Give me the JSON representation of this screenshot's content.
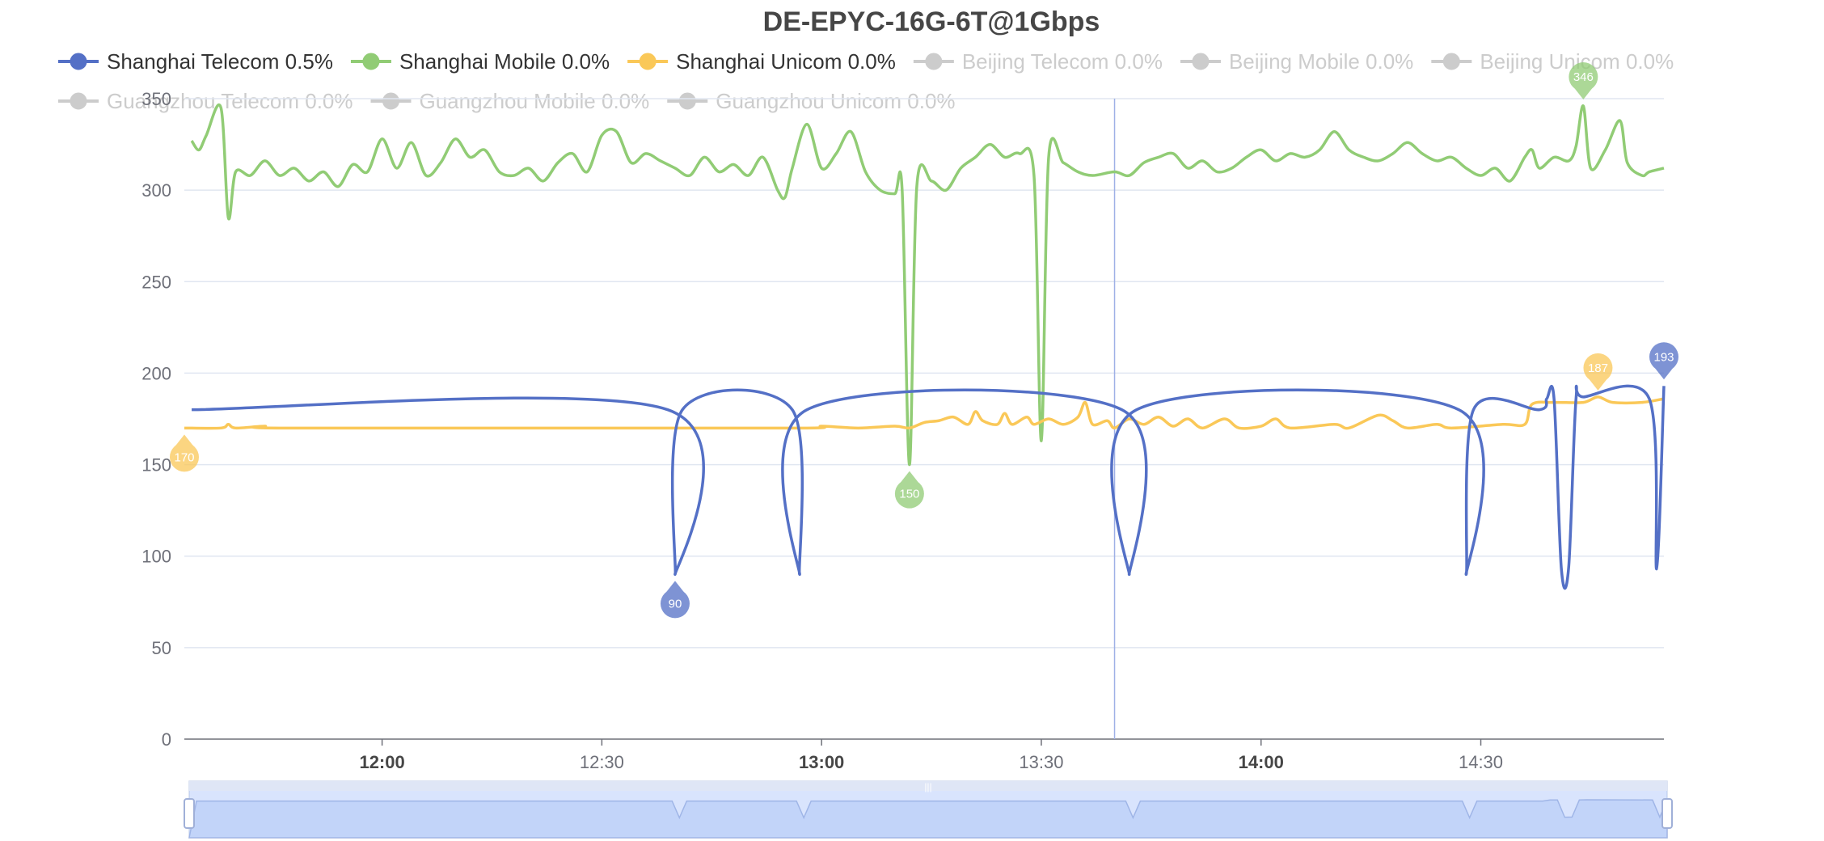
{
  "chart_data": {
    "type": "line",
    "title": "DE-EPYC-16G-6T@1Gbps",
    "ylim": [
      0,
      350
    ],
    "y_ticks": [
      "0",
      "50",
      "100",
      "150",
      "200",
      "250",
      "300",
      "350"
    ],
    "x_range_minutes": [
      "11:33",
      "14:55"
    ],
    "x_ticks": [
      {
        "label": "12:00",
        "bold": true
      },
      {
        "label": "12:30",
        "bold": false
      },
      {
        "label": "13:00",
        "bold": true
      },
      {
        "label": "13:30",
        "bold": false
      },
      {
        "label": "14:00",
        "bold": true
      },
      {
        "label": "14:30",
        "bold": false
      }
    ],
    "grid": true,
    "legend_position": "top",
    "crosshair_x": "13:40",
    "series": [
      {
        "name": "Shanghai Telecom 0.5%",
        "color": "#5470c6",
        "active": true,
        "baseline": 180,
        "points": [
          [
            "11:34",
            180
          ],
          [
            "12:39",
            180
          ],
          [
            "12:40",
            90
          ],
          [
            "12:41",
            180
          ],
          [
            "12:56",
            180
          ],
          [
            "12:57",
            90
          ],
          [
            "12:58",
            180
          ],
          [
            "13:41",
            180
          ],
          [
            "13:42",
            90
          ],
          [
            "13:43",
            180
          ],
          [
            "14:27",
            180
          ],
          [
            "14:28",
            90
          ],
          [
            "14:29",
            180
          ],
          [
            "14:38",
            180
          ],
          [
            "14:39",
            186
          ],
          [
            "14:40",
            186
          ],
          [
            "14:41",
            93
          ],
          [
            "14:42",
            94
          ],
          [
            "14:43",
            186
          ],
          [
            "14:44",
            187
          ],
          [
            "14:53",
            186
          ],
          [
            "14:54",
            93
          ],
          [
            "14:55",
            193
          ]
        ],
        "markers": [
          {
            "label": "90",
            "x": "12:40",
            "value": 90
          },
          {
            "label": "193",
            "x": "14:55",
            "value": 193
          }
        ]
      },
      {
        "name": "Shanghai Mobile 0.0%",
        "color": "#91cc75",
        "active": true,
        "points": [
          [
            "11:34",
            327
          ],
          [
            "11:35",
            322
          ],
          [
            "11:36",
            330
          ],
          [
            "11:38",
            345
          ],
          [
            "11:39",
            285
          ],
          [
            "11:40",
            310
          ],
          [
            "11:42",
            308
          ],
          [
            "11:44",
            316
          ],
          [
            "11:46",
            308
          ],
          [
            "11:48",
            312
          ],
          [
            "11:50",
            305
          ],
          [
            "11:52",
            310
          ],
          [
            "11:54",
            302
          ],
          [
            "11:56",
            314
          ],
          [
            "11:58",
            310
          ],
          [
            "12:00",
            328
          ],
          [
            "12:02",
            312
          ],
          [
            "12:04",
            326
          ],
          [
            "12:06",
            308
          ],
          [
            "12:08",
            315
          ],
          [
            "12:10",
            328
          ],
          [
            "12:12",
            318
          ],
          [
            "12:14",
            322
          ],
          [
            "12:16",
            310
          ],
          [
            "12:18",
            308
          ],
          [
            "12:20",
            312
          ],
          [
            "12:22",
            305
          ],
          [
            "12:24",
            315
          ],
          [
            "12:26",
            320
          ],
          [
            "12:28",
            310
          ],
          [
            "12:30",
            330
          ],
          [
            "12:32",
            332
          ],
          [
            "12:34",
            315
          ],
          [
            "12:36",
            320
          ],
          [
            "12:38",
            316
          ],
          [
            "12:40",
            312
          ],
          [
            "12:42",
            308
          ],
          [
            "12:44",
            318
          ],
          [
            "12:46",
            310
          ],
          [
            "12:48",
            314
          ],
          [
            "12:50",
            308
          ],
          [
            "12:52",
            318
          ],
          [
            "12:54",
            300
          ],
          [
            "12:55",
            296
          ],
          [
            "12:56",
            312
          ],
          [
            "12:58",
            336
          ],
          [
            "13:00",
            312
          ],
          [
            "13:02",
            320
          ],
          [
            "13:04",
            332
          ],
          [
            "13:06",
            310
          ],
          [
            "13:08",
            300
          ],
          [
            "13:10",
            298
          ],
          [
            "13:11",
            300
          ],
          [
            "13:12",
            150
          ],
          [
            "13:13",
            302
          ],
          [
            "13:15",
            305
          ],
          [
            "13:17",
            300
          ],
          [
            "13:19",
            312
          ],
          [
            "13:21",
            318
          ],
          [
            "13:23",
            325
          ],
          [
            "13:25",
            318
          ],
          [
            "13:27",
            320
          ],
          [
            "13:29",
            308
          ],
          [
            "13:30",
            163
          ],
          [
            "13:31",
            318
          ],
          [
            "13:33",
            315
          ],
          [
            "13:35",
            310
          ],
          [
            "13:37",
            308
          ],
          [
            "13:40",
            310
          ],
          [
            "13:42",
            308
          ],
          [
            "13:44",
            315
          ],
          [
            "13:46",
            318
          ],
          [
            "13:48",
            320
          ],
          [
            "13:50",
            312
          ],
          [
            "13:52",
            316
          ],
          [
            "13:54",
            310
          ],
          [
            "13:56",
            312
          ],
          [
            "13:58",
            318
          ],
          [
            "14:00",
            322
          ],
          [
            "14:02",
            316
          ],
          [
            "14:04",
            320
          ],
          [
            "14:06",
            318
          ],
          [
            "14:08",
            322
          ],
          [
            "14:10",
            332
          ],
          [
            "14:12",
            322
          ],
          [
            "14:14",
            318
          ],
          [
            "14:16",
            316
          ],
          [
            "14:18",
            320
          ],
          [
            "14:20",
            326
          ],
          [
            "14:22",
            320
          ],
          [
            "14:24",
            316
          ],
          [
            "14:26",
            318
          ],
          [
            "14:28",
            312
          ],
          [
            "14:30",
            308
          ],
          [
            "14:32",
            312
          ],
          [
            "14:34",
            305
          ],
          [
            "14:36",
            318
          ],
          [
            "14:37",
            322
          ],
          [
            "14:38",
            312
          ],
          [
            "14:40",
            318
          ],
          [
            "14:42",
            316
          ],
          [
            "14:43",
            324
          ],
          [
            "14:44",
            346
          ],
          [
            "14:45",
            312
          ],
          [
            "14:47",
            322
          ],
          [
            "14:49",
            338
          ],
          [
            "14:50",
            315
          ],
          [
            "14:52",
            308
          ],
          [
            "14:53",
            310
          ],
          [
            "14:55",
            312
          ]
        ],
        "markers": [
          {
            "label": "150",
            "x": "13:12",
            "value": 150
          },
          {
            "label": "346",
            "x": "14:44",
            "value": 346
          }
        ]
      },
      {
        "name": "Shanghai Unicom 0.0%",
        "color": "#fac858",
        "active": true,
        "points": [
          [
            "11:33",
            170
          ],
          [
            "11:38",
            170
          ],
          [
            "11:39",
            172
          ],
          [
            "11:40",
            170
          ],
          [
            "11:44",
            171
          ],
          [
            "11:46",
            170
          ],
          [
            "12:30",
            170
          ],
          [
            "12:58",
            170
          ],
          [
            "13:00",
            171
          ],
          [
            "13:05",
            170
          ],
          [
            "13:10",
            171
          ],
          [
            "13:12",
            170
          ],
          [
            "13:14",
            173
          ],
          [
            "13:16",
            174
          ],
          [
            "13:18",
            176
          ],
          [
            "13:20",
            172
          ],
          [
            "13:21",
            179
          ],
          [
            "13:22",
            174
          ],
          [
            "13:24",
            172
          ],
          [
            "13:25",
            178
          ],
          [
            "13:26",
            172
          ],
          [
            "13:28",
            176
          ],
          [
            "13:29",
            172
          ],
          [
            "13:31",
            175
          ],
          [
            "13:33",
            172
          ],
          [
            "13:35",
            176
          ],
          [
            "13:36",
            184
          ],
          [
            "13:37",
            172
          ],
          [
            "13:39",
            174
          ],
          [
            "13:40",
            170
          ],
          [
            "13:42",
            175
          ],
          [
            "13:44",
            172
          ],
          [
            "13:46",
            176
          ],
          [
            "13:48",
            171
          ],
          [
            "13:50",
            175
          ],
          [
            "13:52",
            170
          ],
          [
            "13:55",
            175
          ],
          [
            "13:57",
            170
          ],
          [
            "14:00",
            171
          ],
          [
            "14:02",
            175
          ],
          [
            "14:04",
            170
          ],
          [
            "14:10",
            172
          ],
          [
            "14:12",
            170
          ],
          [
            "14:16",
            177
          ],
          [
            "14:18",
            174
          ],
          [
            "14:20",
            170
          ],
          [
            "14:24",
            172
          ],
          [
            "14:26",
            170
          ],
          [
            "14:33",
            172
          ],
          [
            "14:36",
            172
          ],
          [
            "14:37",
            183
          ],
          [
            "14:40",
            184
          ],
          [
            "14:44",
            184
          ],
          [
            "14:46",
            187
          ],
          [
            "14:48",
            184
          ],
          [
            "14:52",
            184
          ],
          [
            "14:55",
            186
          ]
        ],
        "markers": [
          {
            "label": "170",
            "x": "11:33",
            "value": 170
          },
          {
            "label": "187",
            "x": "14:46",
            "value": 187
          }
        ]
      },
      {
        "name": "Beijing Telecom 0.0%",
        "color": "#cccccc",
        "active": false,
        "points": [],
        "markers": []
      },
      {
        "name": "Beijing Mobile 0.0%",
        "color": "#cccccc",
        "active": false,
        "points": [],
        "markers": []
      },
      {
        "name": "Beijing Unicom 0.0%",
        "color": "#cccccc",
        "active": false,
        "points": [],
        "markers": []
      },
      {
        "name": "Guangzhou Telecom 0.0%",
        "color": "#cccccc",
        "active": false,
        "points": [],
        "markers": []
      },
      {
        "name": "Guangzhou Mobile 0.0%",
        "color": "#cccccc",
        "active": false,
        "points": [],
        "markers": []
      },
      {
        "name": "Guangzhou Unicom 0.0%",
        "color": "#cccccc",
        "active": false,
        "points": [],
        "markers": []
      }
    ],
    "data_zoom": {
      "start_percent": 0,
      "end_percent": 100
    }
  }
}
